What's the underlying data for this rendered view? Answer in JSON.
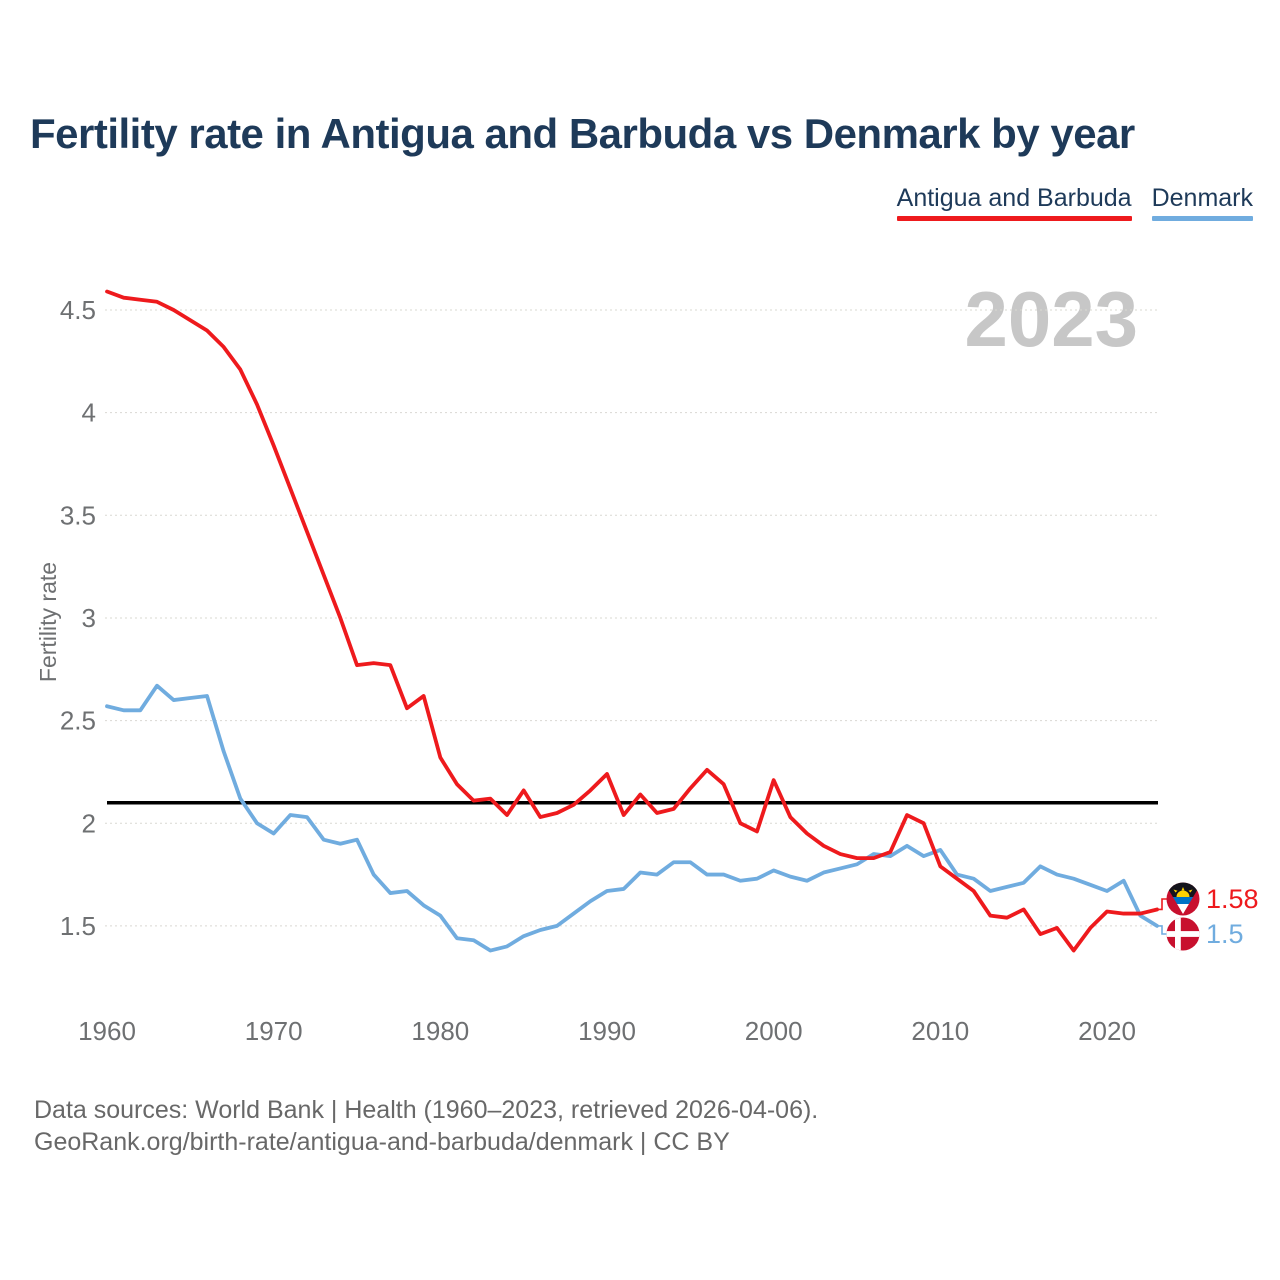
{
  "header": {
    "title": "Fertility rate in Antigua and Barbuda vs Denmark by year"
  },
  "legend": {
    "items": [
      {
        "label": "Antigua and Barbuda",
        "color": "#ee1a1d"
      },
      {
        "label": "Denmark",
        "color": "#70acdf"
      }
    ]
  },
  "watermark": "2023",
  "footer": {
    "line1": "Data sources: World Bank | Health (1960–2023, retrieved 2026-04-06).",
    "line2": "GeoRank.org/birth-rate/antigua-and-barbuda/denmark | CC BY"
  },
  "chart_data": {
    "type": "line",
    "title": "Fertility rate in Antigua and Barbuda vs Denmark by year",
    "xlabel": "",
    "ylabel": "Fertility rate",
    "xlim": [
      1960,
      2023
    ],
    "ylim": [
      1.2,
      4.72
    ],
    "x_step": 1,
    "x_ticks": [
      1960,
      1970,
      1980,
      1990,
      2000,
      2010,
      2020
    ],
    "y_ticks": [
      4.5,
      4,
      3.5,
      3,
      2.5,
      2,
      1.5
    ],
    "grid": "horizontal-dotted",
    "legend_position": "top-right",
    "reference_line": {
      "value": 2.1,
      "color": "#000000"
    },
    "series": [
      {
        "name": "Antigua and Barbuda",
        "color": "#ee1a1d",
        "end_label": "1.58",
        "end_value": 1.58,
        "values": [
          4.59,
          4.56,
          4.55,
          4.54,
          4.5,
          4.45,
          4.4,
          4.32,
          4.21,
          4.04,
          3.84,
          3.63,
          3.42,
          3.21,
          3.0,
          2.77,
          2.78,
          2.77,
          2.56,
          2.62,
          2.32,
          2.19,
          2.11,
          2.12,
          2.04,
          2.16,
          2.03,
          2.05,
          2.09,
          2.16,
          2.24,
          2.04,
          2.14,
          2.05,
          2.07,
          2.17,
          2.26,
          2.19,
          2.0,
          1.96,
          2.21,
          2.03,
          1.95,
          1.89,
          1.85,
          1.83,
          1.83,
          1.86,
          2.04,
          2.0,
          1.79,
          1.73,
          1.67,
          1.55,
          1.54,
          1.58,
          1.46,
          1.49,
          1.38,
          1.49,
          1.57,
          1.56,
          1.56,
          1.58
        ]
      },
      {
        "name": "Denmark",
        "color": "#70acdf",
        "end_label": "1.5",
        "end_value": 1.5,
        "values": [
          2.57,
          2.55,
          2.55,
          2.67,
          2.6,
          2.61,
          2.62,
          2.35,
          2.12,
          2.0,
          1.95,
          2.04,
          2.03,
          1.92,
          1.9,
          1.92,
          1.75,
          1.66,
          1.67,
          1.6,
          1.55,
          1.44,
          1.43,
          1.38,
          1.4,
          1.45,
          1.48,
          1.5,
          1.56,
          1.62,
          1.67,
          1.68,
          1.76,
          1.75,
          1.81,
          1.81,
          1.75,
          1.75,
          1.72,
          1.73,
          1.77,
          1.74,
          1.72,
          1.76,
          1.78,
          1.8,
          1.85,
          1.84,
          1.89,
          1.84,
          1.87,
          1.75,
          1.73,
          1.67,
          1.69,
          1.71,
          1.79,
          1.75,
          1.73,
          1.7,
          1.67,
          1.72,
          1.55,
          1.5
        ]
      }
    ]
  }
}
